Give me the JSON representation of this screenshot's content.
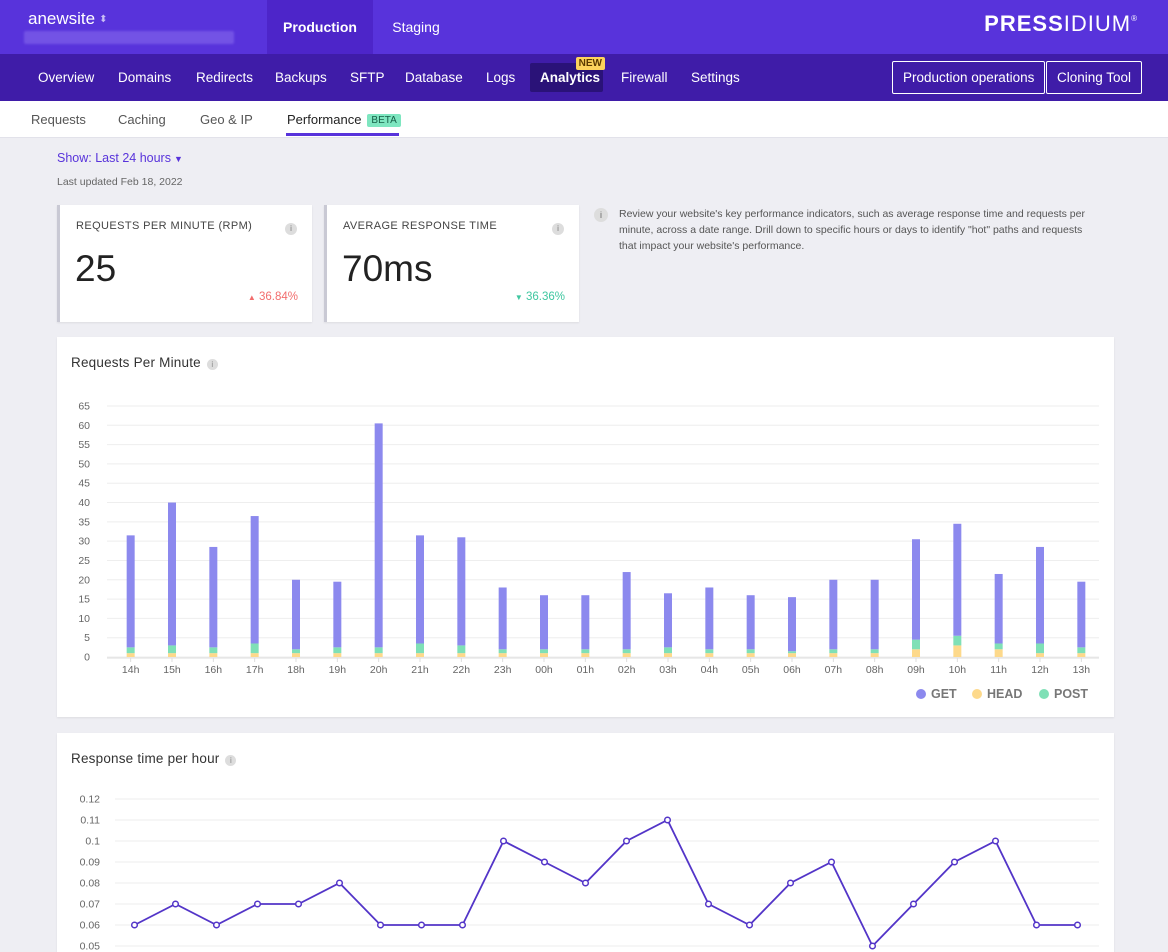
{
  "site": {
    "name": "anewsite"
  },
  "environments": {
    "production": "Production",
    "staging": "Staging"
  },
  "brand": {
    "bold": "PRESS",
    "light": "IDIUM",
    "mark": "®"
  },
  "nav": {
    "items": [
      "Overview",
      "Domains",
      "Redirects",
      "Backups",
      "SFTP",
      "Database",
      "Logs",
      "Analytics",
      "Firewall",
      "Settings"
    ],
    "active": "Analytics",
    "new_badge": "NEW",
    "buttons": {
      "production_operations": "Production operations",
      "cloning_tool": "Cloning Tool"
    }
  },
  "subnav": {
    "items": [
      "Requests",
      "Caching",
      "Geo & IP",
      "Performance"
    ],
    "active": "Performance",
    "beta": "BETA"
  },
  "filter": {
    "show": "Show: Last 24 hours",
    "updated": "Last updated Feb 18, 2022"
  },
  "kpis": {
    "rpm": {
      "title": "REQUESTS PER MINUTE (RPM)",
      "value": "25",
      "change": "36.84%",
      "direction": "up"
    },
    "response": {
      "title": "AVERAGE RESPONSE TIME",
      "value": "70ms",
      "change": "36.36%",
      "direction": "down"
    }
  },
  "description": "Review your website's key performance indicators, such as average response time and requests per minute, across a date range. Drill down to specific hours or days to identify \"hot\" paths and requests that impact your website's performance.",
  "colors": {
    "get": "#8c89ee",
    "head": "#fdd98b",
    "post": "#7fe0b6",
    "line": "#5335c8",
    "accent": "#5833db"
  },
  "chart_data": [
    {
      "type": "bar",
      "title": "Requests Per Minute",
      "stacked": true,
      "categories": [
        "14h",
        "15h",
        "16h",
        "17h",
        "18h",
        "19h",
        "20h",
        "21h",
        "22h",
        "23h",
        "00h",
        "01h",
        "02h",
        "03h",
        "04h",
        "05h",
        "06h",
        "07h",
        "08h",
        "09h",
        "10h",
        "11h",
        "12h",
        "13h"
      ],
      "series": [
        {
          "name": "GET",
          "values": [
            29,
            37,
            26,
            33,
            18,
            17,
            58,
            28,
            28,
            16,
            14,
            14,
            20,
            14,
            16,
            14,
            14,
            18,
            18,
            26,
            29,
            18,
            25,
            17
          ]
        },
        {
          "name": "HEAD",
          "values": [
            1,
            1,
            1,
            1,
            1,
            1,
            1,
            1,
            1,
            1,
            1,
            1,
            1,
            1,
            1,
            1,
            1,
            1,
            1,
            2,
            3,
            2,
            1,
            1
          ]
        },
        {
          "name": "POST",
          "values": [
            1.5,
            2,
            1.5,
            2.5,
            1,
            1.5,
            1.5,
            2.5,
            2,
            1,
            1,
            1,
            1,
            1.5,
            1,
            1,
            0.5,
            1,
            1,
            2.5,
            2.5,
            1.5,
            2.5,
            1.5
          ]
        }
      ],
      "ylim": [
        0,
        65
      ],
      "yticks": [
        0,
        5,
        10,
        15,
        20,
        25,
        30,
        35,
        40,
        45,
        50,
        55,
        60,
        65
      ],
      "legend": "bottom-right",
      "grid": true
    },
    {
      "type": "line",
      "title": "Response time per hour",
      "series": [
        {
          "values": [
            0.06,
            0.07,
            0.06,
            0.07,
            0.07,
            0.08,
            0.06,
            0.06,
            0.06,
            0.1,
            0.09,
            0.08,
            0.1,
            0.11,
            0.07,
            0.06,
            0.08,
            0.09,
            0.05,
            0.07,
            0.09,
            0.1,
            0.06,
            0.06
          ]
        }
      ],
      "yticks": [
        "0.05",
        "0.06",
        "0.07",
        "0.08",
        "0.09",
        "0.1",
        "0.11",
        "0.12"
      ],
      "ylim": [
        0.05,
        0.12
      ],
      "grid": true
    }
  ]
}
